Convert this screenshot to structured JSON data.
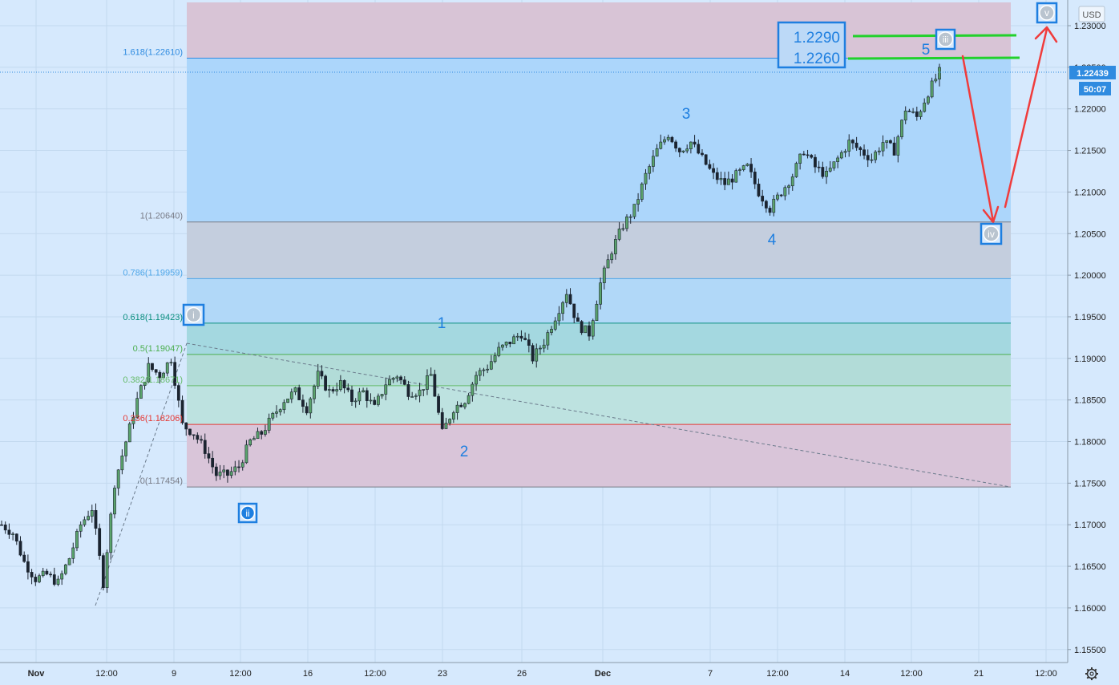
{
  "chart_data": {
    "type": "candlestick",
    "currency": "USD",
    "price_ylim": [
      1.153,
      1.2335
    ],
    "y_ticks": [
      "1.23000",
      "1.22500",
      "1.22000",
      "1.21500",
      "1.21000",
      "1.20500",
      "1.20000",
      "1.19500",
      "1.19000",
      "1.18500",
      "1.18000",
      "1.17500",
      "1.17000",
      "1.16500",
      "1.16000",
      "1.15500"
    ],
    "x_ticks": [
      "Nov",
      "12:00",
      "9",
      "12:00",
      "16",
      "12:00",
      "23",
      "26",
      "Dec",
      "7",
      "12:00",
      "14",
      "12:00",
      "21",
      "12:00"
    ],
    "last_price": "1.22439",
    "countdown": "50:07",
    "fib_levels": [
      {
        "label": "1.618(1.22610)",
        "price": 1.2261,
        "color": "#2f8be0"
      },
      {
        "label": "1(1.20640)",
        "price": 1.2064,
        "color": "#787b86"
      },
      {
        "label": "0.786(1.19959)",
        "price": 1.19959,
        "color": "#4ea6e8"
      },
      {
        "label": "0.618(1.19423)",
        "price": 1.19423,
        "color": "#0b8f80"
      },
      {
        "label": "0.5(1.19047)",
        "price": 1.19047,
        "color": "#4caf50"
      },
      {
        "label": "0.382(1.18671)",
        "price": 1.18671,
        "color": "#66bb6a"
      },
      {
        "label": "0.236(1.18206)",
        "price": 1.18206,
        "color": "#e53935"
      },
      {
        "label": "0(1.17454)",
        "price": 1.17454,
        "color": "#787b86"
      }
    ],
    "target_box": {
      "upper": "1.2290",
      "lower": "1.2260"
    },
    "wave_labels": [
      "1",
      "2",
      "3",
      "4",
      "5"
    ],
    "circled_labels": [
      "i",
      "ii",
      "iii",
      "iv",
      "v"
    ],
    "price_path": [
      [
        1.17,
        1.169
      ],
      [
        1.1655,
        1.1635
      ],
      [
        1.164,
        1.163
      ],
      [
        1.166,
        1.17
      ],
      [
        1.172,
        1.163
      ],
      [
        1.175,
        1.18
      ],
      [
        1.185,
        1.189
      ],
      [
        1.188,
        1.19
      ],
      [
        1.182,
        1.181
      ],
      [
        1.179,
        1.176
      ],
      [
        1.176,
        1.177
      ],
      [
        1.18,
        1.181
      ],
      [
        1.183,
        1.185
      ],
      [
        1.186,
        1.184
      ],
      [
        1.188,
        1.186
      ],
      [
        1.187,
        1.185
      ],
      [
        1.186,
        1.184
      ],
      [
        1.187,
        1.188
      ],
      [
        1.186,
        1.186
      ],
      [
        1.188,
        1.181
      ],
      [
        1.184,
        1.185
      ],
      [
        1.188,
        1.189
      ],
      [
        1.191,
        1.192
      ],
      [
        1.193,
        1.19
      ],
      [
        1.192,
        1.195
      ],
      [
        1.198,
        1.194
      ],
      [
        1.193,
        1.199
      ],
      [
        1.203,
        1.206
      ],
      [
        1.208,
        1.212
      ],
      [
        1.215,
        1.217
      ],
      [
        1.215,
        1.216
      ],
      [
        1.214,
        1.212
      ],
      [
        1.211,
        1.212
      ],
      [
        1.213,
        1.21
      ],
      [
        1.208,
        1.21
      ],
      [
        1.212,
        1.215
      ],
      [
        1.213,
        1.212
      ],
      [
        1.214,
        1.216
      ],
      [
        1.215,
        1.214
      ],
      [
        1.216,
        1.215
      ],
      [
        1.22,
        1.219
      ],
      [
        1.222,
        1.2244
      ]
    ]
  }
}
